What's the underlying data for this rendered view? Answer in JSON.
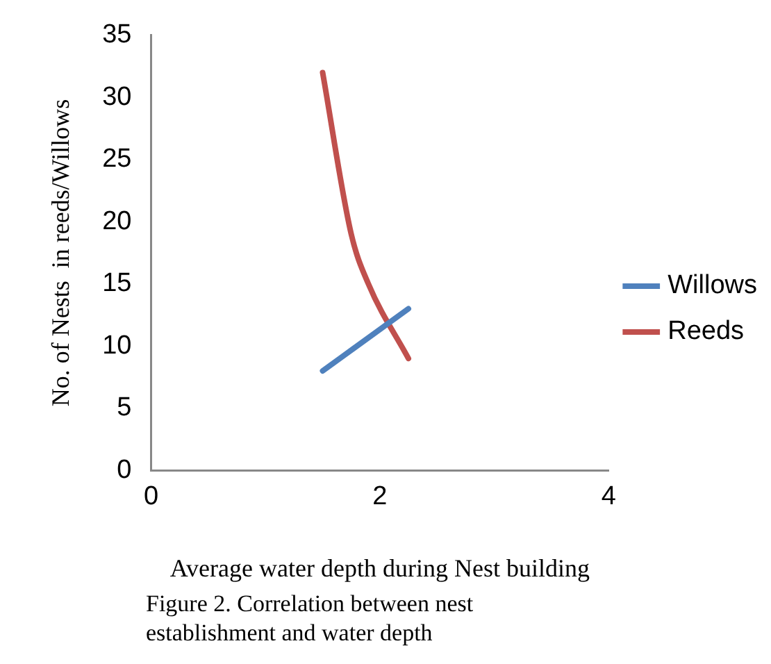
{
  "chart_data": {
    "type": "line",
    "xlabel": "Average water depth during Nest building",
    "ylabel": "No. of Nests  in reeds/Willows",
    "annotations": [
      "Figure  2. Correlation between  nest establishment and water depth"
    ],
    "xlim": [
      0,
      4
    ],
    "xticks": [
      0,
      2,
      4
    ],
    "ylim": [
      0,
      35
    ],
    "yticks": [
      0,
      5,
      10,
      15,
      20,
      25,
      30,
      35
    ],
    "grid": false,
    "legend": "right",
    "marker": "none",
    "series": [
      {
        "name": "Willows",
        "color": "#4f81bd",
        "x": [
          1.5,
          2.25
        ],
        "values": [
          8,
          13
        ]
      },
      {
        "name": "Reeds",
        "color": "#c0504d",
        "x": [
          1.5,
          1.75,
          1.9,
          2.25
        ],
        "values": [
          32,
          19,
          15,
          9
        ]
      }
    ]
  }
}
